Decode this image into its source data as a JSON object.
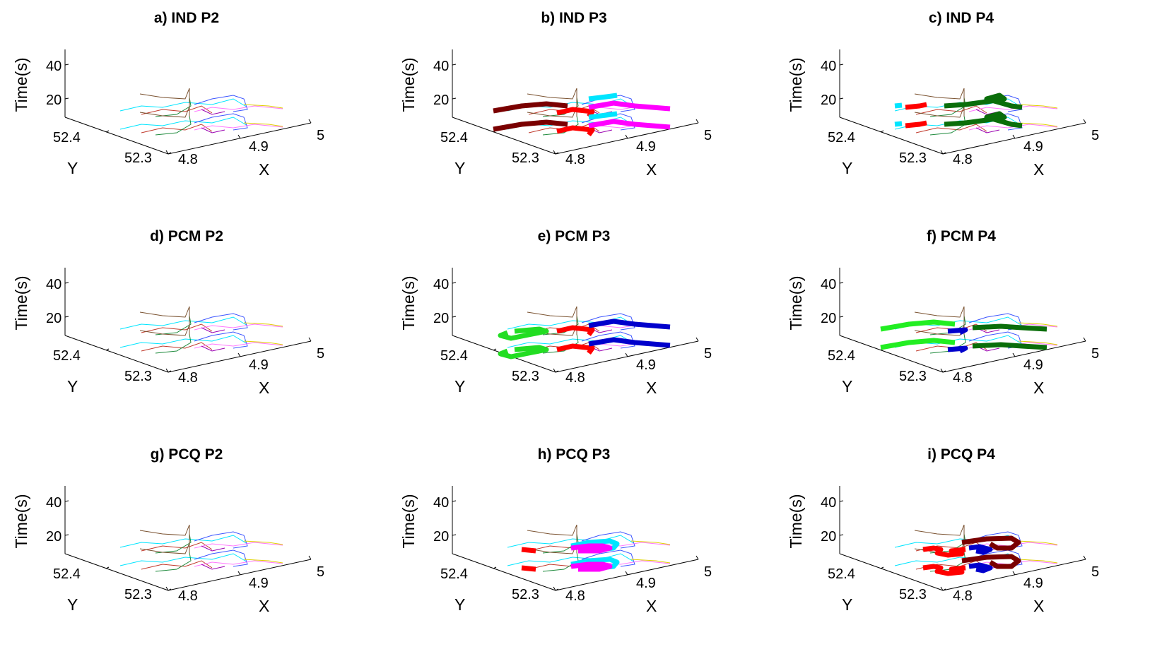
{
  "chart_data": [
    {
      "type": "line",
      "title": "a) IND P2",
      "zlabel": "Time(s)",
      "ylabel": "Y",
      "xlabel": "X",
      "zticks": [
        "40",
        "20"
      ],
      "yticks": [
        "52.4",
        "52.3"
      ],
      "xticks": [
        "4.8",
        "4.9",
        "5"
      ],
      "highlight": []
    },
    {
      "type": "line",
      "title": "b) IND P3",
      "zlabel": "Time(s)",
      "ylabel": "Y",
      "xlabel": "X",
      "zticks": [
        "40",
        "20"
      ],
      "yticks": [
        "52.4",
        "52.3"
      ],
      "xticks": [
        "4.8",
        "4.9",
        "5"
      ],
      "highlight": [
        {
          "color": "#7a0000",
          "route": "west"
        },
        {
          "color": "#ff0000",
          "route": "center"
        },
        {
          "color": "#ff00ff",
          "route": "east"
        },
        {
          "color": "#00e5ff",
          "route": "northeast"
        }
      ]
    },
    {
      "type": "line",
      "title": "c) IND P4",
      "zlabel": "Time(s)",
      "ylabel": "Y",
      "xlabel": "X",
      "zticks": [
        "40",
        "20"
      ],
      "yticks": [
        "52.4",
        "52.3"
      ],
      "xticks": [
        "4.8",
        "4.9",
        "5"
      ],
      "highlight": [
        {
          "color": "#ff0000",
          "route": "westshort"
        },
        {
          "color": "#00e5ff",
          "route": "westtip"
        },
        {
          "color": "#0a6e0a",
          "route": "eastmid"
        }
      ]
    },
    {
      "type": "line",
      "title": "d) PCM P2",
      "zlabel": "Time(s)",
      "ylabel": "Y",
      "xlabel": "X",
      "zticks": [
        "40",
        "20"
      ],
      "yticks": [
        "52.4",
        "52.3"
      ],
      "xticks": [
        "4.8",
        "4.9",
        "5"
      ],
      "highlight": []
    },
    {
      "type": "line",
      "title": "e) PCM P3",
      "zlabel": "Time(s)",
      "ylabel": "Y",
      "xlabel": "X",
      "zticks": [
        "40",
        "20"
      ],
      "yticks": [
        "52.4",
        "52.3"
      ],
      "xticks": [
        "4.8",
        "4.9",
        "5"
      ],
      "highlight": [
        {
          "color": "#22dd22",
          "route": "westloop"
        },
        {
          "color": "#ff0000",
          "route": "center"
        },
        {
          "color": "#0000cc",
          "route": "east"
        }
      ]
    },
    {
      "type": "line",
      "title": "f) PCM P4",
      "zlabel": "Time(s)",
      "ylabel": "Y",
      "xlabel": "X",
      "zticks": [
        "40",
        "20"
      ],
      "yticks": [
        "52.4",
        "52.3"
      ],
      "xticks": [
        "4.8",
        "4.9",
        "5"
      ],
      "highlight": [
        {
          "color": "#22ee22",
          "route": "west"
        },
        {
          "color": "#0000cc",
          "route": "centershort"
        },
        {
          "color": "#0a6e0a",
          "route": "eastlong"
        }
      ]
    },
    {
      "type": "line",
      "title": "g) PCQ P2",
      "zlabel": "Time(s)",
      "ylabel": "Y",
      "xlabel": "X",
      "zticks": [
        "40",
        "20"
      ],
      "yticks": [
        "52.4",
        "52.3"
      ],
      "xticks": [
        "4.8",
        "4.9",
        "5"
      ],
      "highlight": []
    },
    {
      "type": "line",
      "title": "h) PCQ P3",
      "zlabel": "Time(s)",
      "ylabel": "Y",
      "xlabel": "X",
      "zticks": [
        "40",
        "20"
      ],
      "yticks": [
        "52.4",
        "52.3"
      ],
      "xticks": [
        "4.8",
        "4.9",
        "5"
      ],
      "highlight": [
        {
          "color": "#ff0000",
          "route": "westdash"
        },
        {
          "color": "#00e5ff",
          "route": "hookouter"
        },
        {
          "color": "#ff00ff",
          "route": "hookinner"
        }
      ]
    },
    {
      "type": "line",
      "title": "i) PCQ P4",
      "zlabel": "Time(s)",
      "ylabel": "Y",
      "xlabel": "X",
      "zticks": [
        "40",
        "20"
      ],
      "yticks": [
        "52.4",
        "52.3"
      ],
      "xticks": [
        "4.8",
        "4.9",
        "5"
      ],
      "highlight": [
        {
          "color": "#ff0000",
          "route": "blockwest"
        },
        {
          "color": "#0000cc",
          "route": "blockmid"
        },
        {
          "color": "#7a0000",
          "route": "hookeast"
        }
      ]
    }
  ]
}
